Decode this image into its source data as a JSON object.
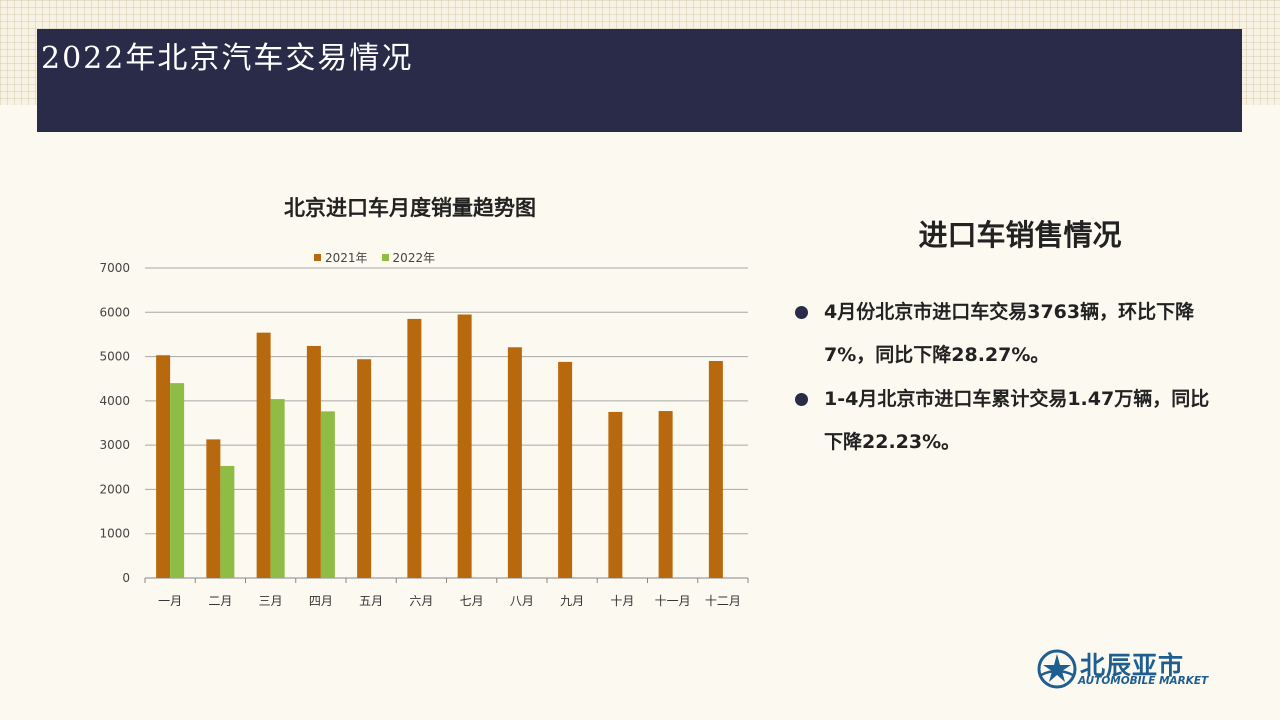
{
  "page": {
    "title": "2022年北京汽车交易情况"
  },
  "side_panel": {
    "title": "进口车销售情况",
    "bullets": [
      "4月份北京市进口车交易3763辆，环比下降7%，同比下降28.27%。",
      "1-4月北京市进口车累计交易1.47万辆，同比下降22.23%。"
    ]
  },
  "logo": {
    "cn": "北辰亚市",
    "en": "AUTOMOBILE MARKET",
    "icon": "star-wheel-icon"
  },
  "colors": {
    "header_bg": "#292b48",
    "series_2021": "#b8690d",
    "series_2022": "#8fbc45"
  },
  "chart_data": {
    "type": "bar",
    "title": "北京进口车月度销量趋势图",
    "categories": [
      "一月",
      "二月",
      "三月",
      "四月",
      "五月",
      "六月",
      "七月",
      "八月",
      "九月",
      "十月",
      "十一月",
      "十二月"
    ],
    "series": [
      {
        "name": "2021年",
        "color": "#b8690d",
        "values": [
          5030,
          3130,
          5540,
          5240,
          4940,
          5850,
          5950,
          5210,
          4880,
          3750,
          3770,
          4900
        ]
      },
      {
        "name": "2022年",
        "color": "#8fbc45",
        "values": [
          4400,
          2530,
          4040,
          3763,
          null,
          null,
          null,
          null,
          null,
          null,
          null,
          null
        ]
      }
    ],
    "ylim": [
      0,
      7000
    ],
    "yticks": [
      0,
      1000,
      2000,
      3000,
      4000,
      5000,
      6000,
      7000
    ],
    "grid": true,
    "legend": "top"
  }
}
